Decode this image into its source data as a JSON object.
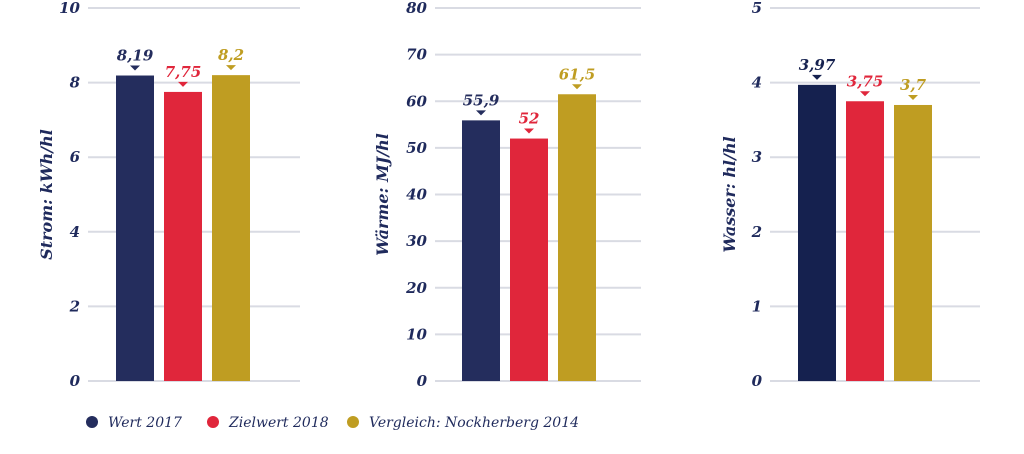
{
  "colors": {
    "series_2017": "#242d5d",
    "series_2018": "#e0263b",
    "series_2014": "#bf9d22",
    "gridline": "#d9dbe3",
    "axis_text": "#1f2a5c"
  },
  "legend": [
    {
      "label": "Wert 2017",
      "color": "#242d5d"
    },
    {
      "label": "Zielwert 2018",
      "color": "#e0263b"
    },
    {
      "label": "Vergleich: Nockherberg 2014",
      "color": "#bf9d22"
    }
  ],
  "chart_data": [
    {
      "type": "bar",
      "ylabel": "Strom: kWh/hl",
      "ylim": [
        0,
        10
      ],
      "ticks": [
        {
          "value": 0,
          "label": "0"
        },
        {
          "value": 2,
          "label": "2"
        },
        {
          "value": 4,
          "label": "4"
        },
        {
          "value": 6,
          "label": "6"
        },
        {
          "value": 8,
          "label": "8"
        },
        {
          "value": 10,
          "label": "10"
        }
      ],
      "grid": true,
      "series": [
        {
          "name": "Wert 2017",
          "value": 8.19,
          "label": "8,19",
          "color": "#242d5d"
        },
        {
          "name": "Zielwert 2018",
          "value": 7.75,
          "label": "7,75",
          "color": "#e0263b"
        },
        {
          "name": "Vergleich: Nockherberg 2014",
          "value": 8.2,
          "label": "8,2",
          "color": "#bf9d22"
        }
      ]
    },
    {
      "type": "bar",
      "ylabel": "Wärme: MJ/hl",
      "ylim": [
        0,
        80
      ],
      "ticks": [
        {
          "value": 0,
          "label": "0"
        },
        {
          "value": 10,
          "label": "10"
        },
        {
          "value": 20,
          "label": "20"
        },
        {
          "value": 30,
          "label": "30"
        },
        {
          "value": 40,
          "label": "40"
        },
        {
          "value": 50,
          "label": "50"
        },
        {
          "value": 60,
          "label": "60"
        },
        {
          "value": 70,
          "label": "70"
        },
        {
          "value": 80,
          "label": "80"
        }
      ],
      "grid": true,
      "series": [
        {
          "name": "Wert 2017",
          "value": 55.9,
          "label": "55,9",
          "color": "#242d5d"
        },
        {
          "name": "Zielwert 2018",
          "value": 52,
          "label": "52",
          "color": "#e0263b"
        },
        {
          "name": "Vergleich: Nockherberg 2014",
          "value": 61.5,
          "label": "61,5",
          "color": "#bf9d22"
        }
      ]
    },
    {
      "type": "bar",
      "ylabel": "Wasser: hl/hl",
      "ylim": [
        0,
        5
      ],
      "ticks": [
        {
          "value": 0,
          "label": "0"
        },
        {
          "value": 1,
          "label": "1"
        },
        {
          "value": 2,
          "label": "2"
        },
        {
          "value": 3,
          "label": "3"
        },
        {
          "value": 4,
          "label": "4"
        },
        {
          "value": 5,
          "label": "5"
        }
      ],
      "grid": true,
      "series": [
        {
          "name": "Wert 2017",
          "value": 3.97,
          "label": "3,97",
          "color": "#15214f"
        },
        {
          "name": "Zielwert 2018",
          "value": 3.75,
          "label": "3,75",
          "color": "#e0263b"
        },
        {
          "name": "Vergleich: Nockherberg 2014",
          "value": 3.7,
          "label": "3,7",
          "color": "#bf9d22"
        }
      ]
    }
  ]
}
